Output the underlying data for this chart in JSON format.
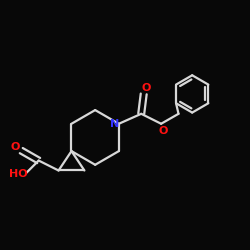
{
  "background_color": "#080808",
  "bond_color": "#d8d8d8",
  "atom_colors": {
    "N": "#3333ff",
    "O": "#ff1111"
  },
  "figsize": [
    2.5,
    2.5
  ],
  "dpi": 100
}
